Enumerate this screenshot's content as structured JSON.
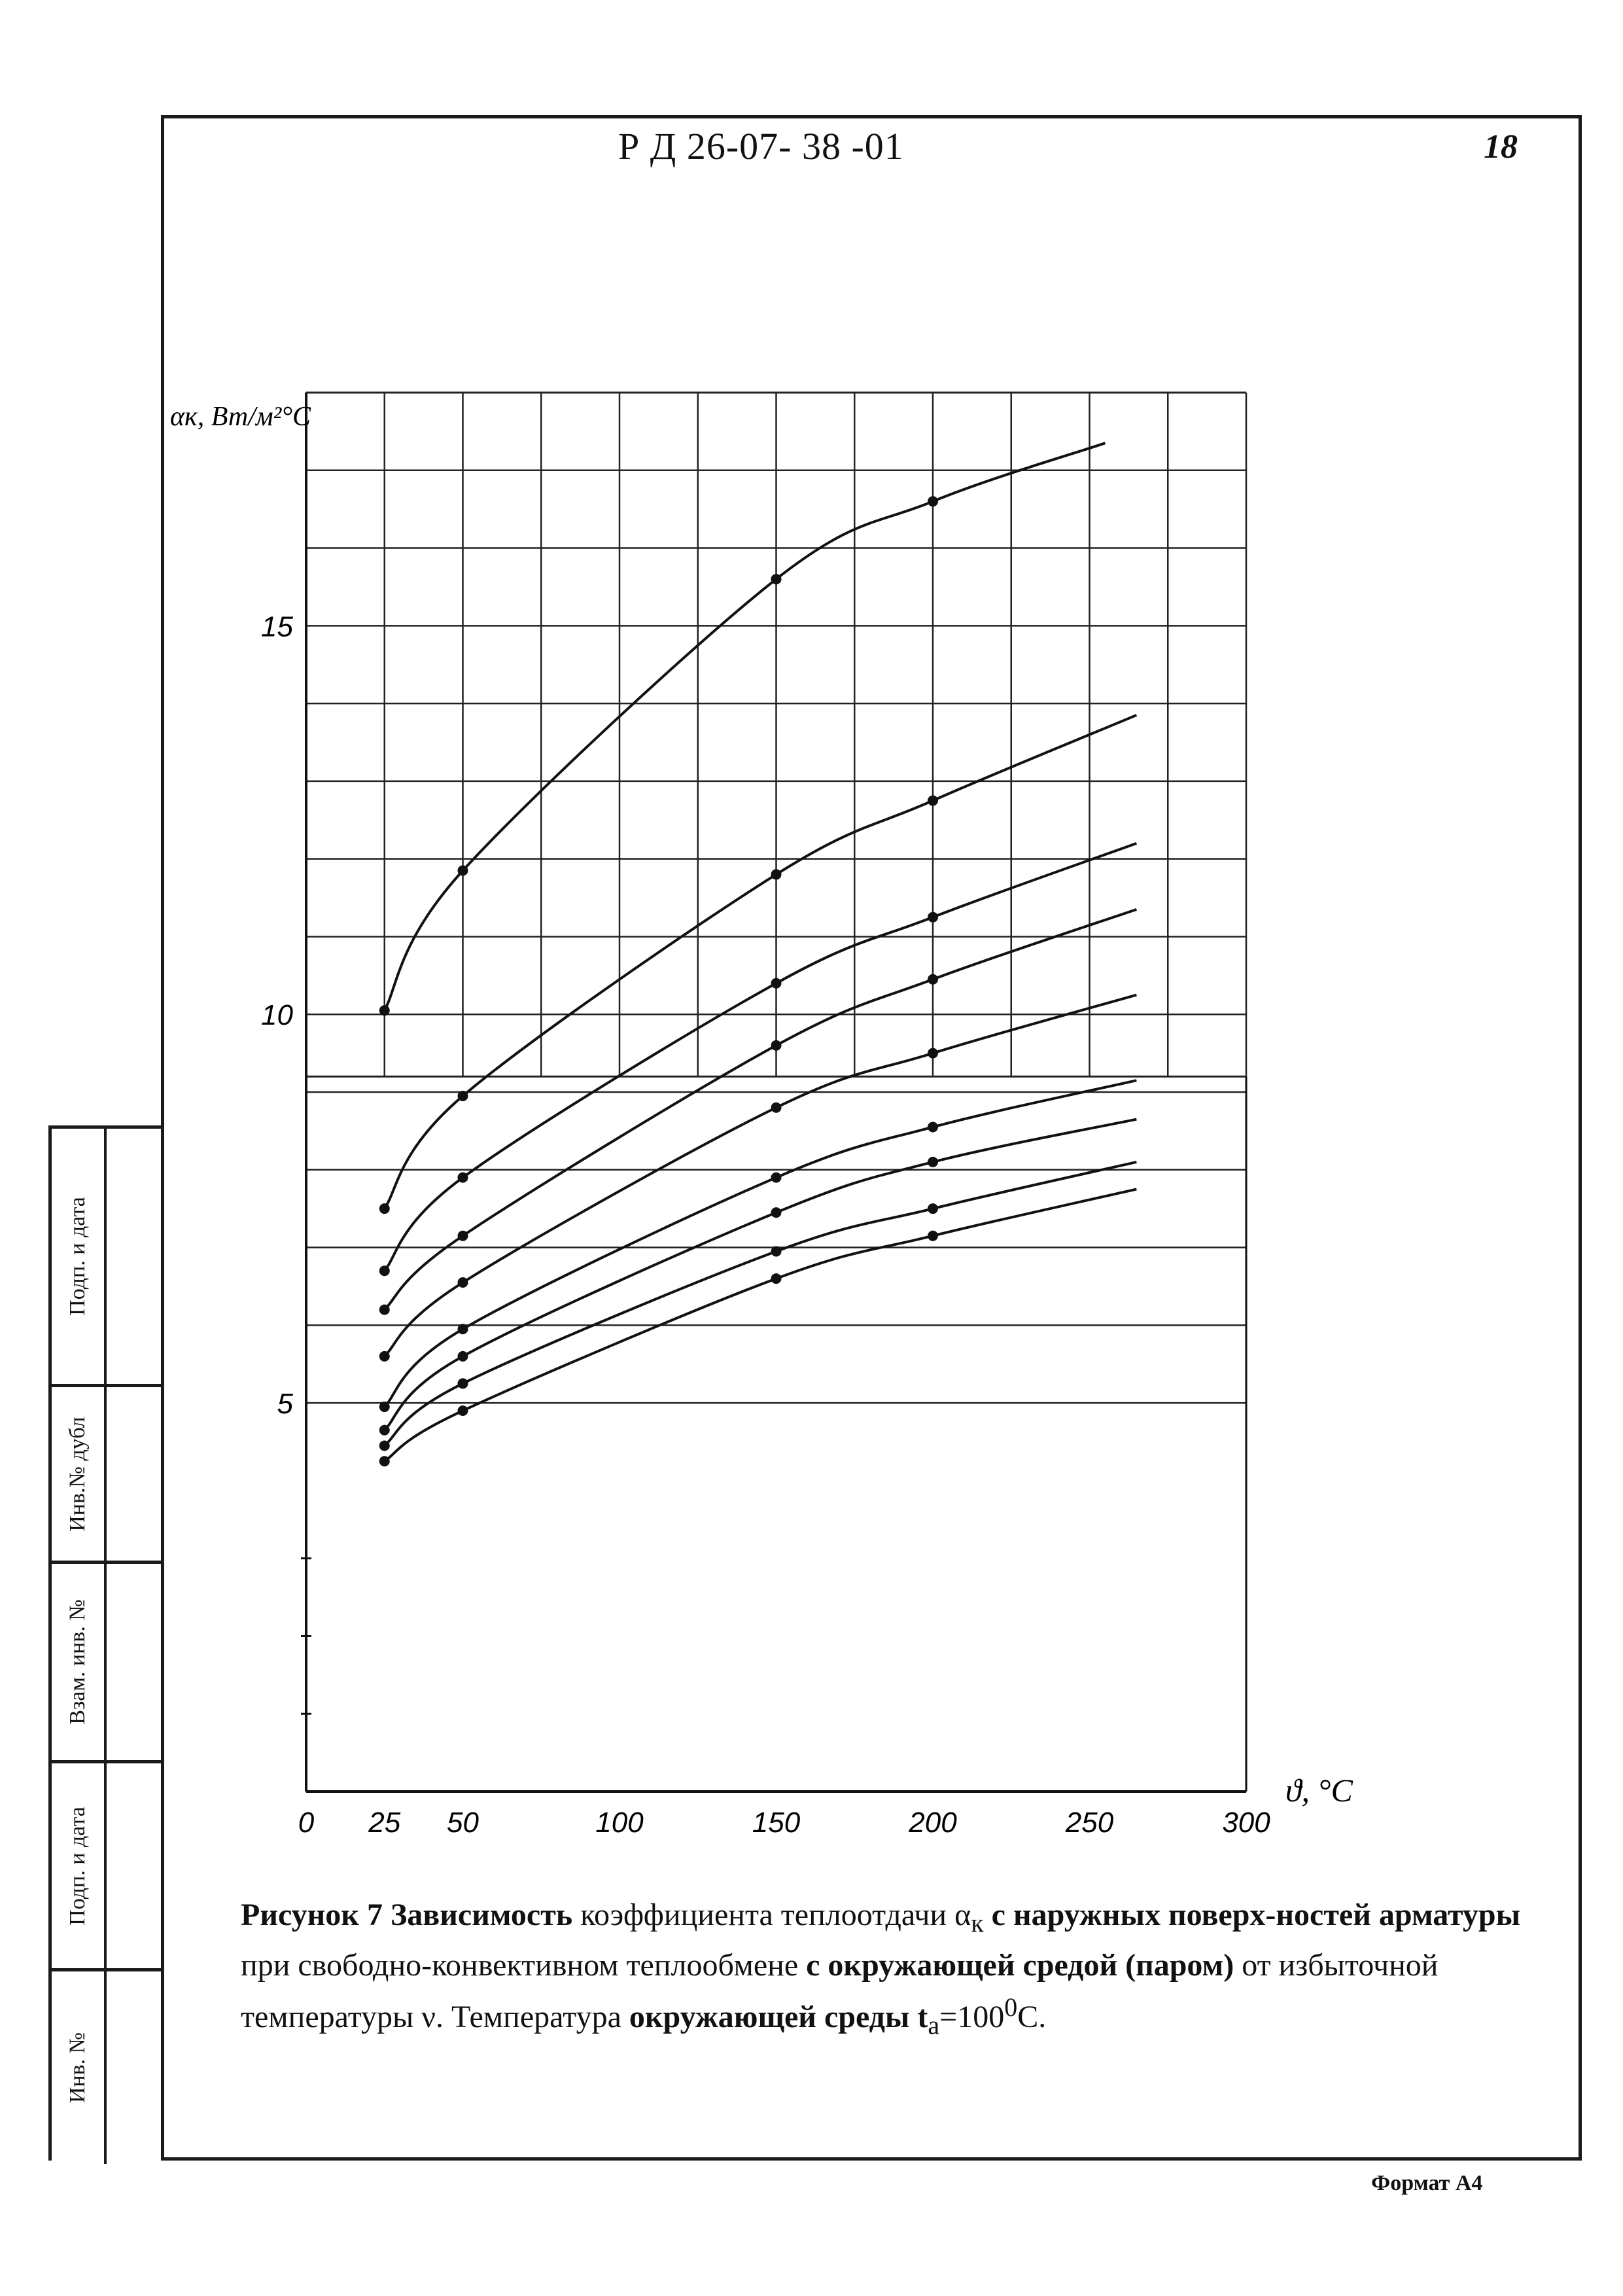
{
  "header": {
    "doc_code": "Р Д 26-07- 38 -01",
    "page_number": "18"
  },
  "footer": {
    "format": "Формат А4"
  },
  "stamp": {
    "labels": [
      "Подп. и дата",
      "Инв.№ дубл",
      "Взам. инв. №",
      "Подп. и дата",
      "Инв. №"
    ]
  },
  "caption": {
    "fig": "Рисунок 7",
    "p1": "Зависимость",
    "p2": "коэффициента теплоотдачи",
    "p3": "α",
    "p3sub": "к",
    "p4": "с наружных поверх-ностей арматуры",
    "p5": "при свободно-конвективном теплообмене",
    "p6": "с окружающей средой (паром)",
    "p7": "от избыточной температуры ν. Температура",
    "p8": "окружающей среды t",
    "p8sub": "a",
    "p9": "=100",
    "p9sup": "0",
    "p10": "C."
  },
  "chart_data": {
    "type": "line",
    "title": "",
    "xlabel": "ϑ, °C",
    "ylabel": "αк, Вт/м²°С",
    "xlim": [
      0,
      300
    ],
    "ylim": [
      0,
      18
    ],
    "x_ticks": [
      0,
      25,
      50,
      100,
      150,
      200,
      250,
      300
    ],
    "y_ticks": [
      5,
      10,
      15
    ],
    "grid": true,
    "x": [
      25,
      50,
      150,
      200
    ],
    "series": [
      {
        "values": [
          10.05,
          11.85,
          15.6,
          16.6
        ]
      },
      {
        "values": [
          7.5,
          8.95,
          11.8,
          12.75
        ]
      },
      {
        "values": [
          6.7,
          7.9,
          10.4,
          11.25
        ]
      },
      {
        "values": [
          6.2,
          7.15,
          9.6,
          10.45
        ]
      },
      {
        "values": [
          5.6,
          6.55,
          8.8,
          9.5
        ]
      },
      {
        "values": [
          4.95,
          5.95,
          7.9,
          8.55
        ]
      },
      {
        "values": [
          4.65,
          5.6,
          7.45,
          8.1
        ]
      },
      {
        "values": [
          4.45,
          5.25,
          6.95,
          7.5
        ]
      },
      {
        "values": [
          4.25,
          4.9,
          6.6,
          7.15
        ]
      }
    ],
    "extended_end_x": [
      255,
      265,
      265,
      265,
      265,
      265,
      265,
      265,
      265
    ],
    "extended_end_y": [
      17.35,
      13.85,
      12.2,
      11.35,
      10.25,
      9.15,
      8.65,
      8.1,
      7.75
    ]
  }
}
